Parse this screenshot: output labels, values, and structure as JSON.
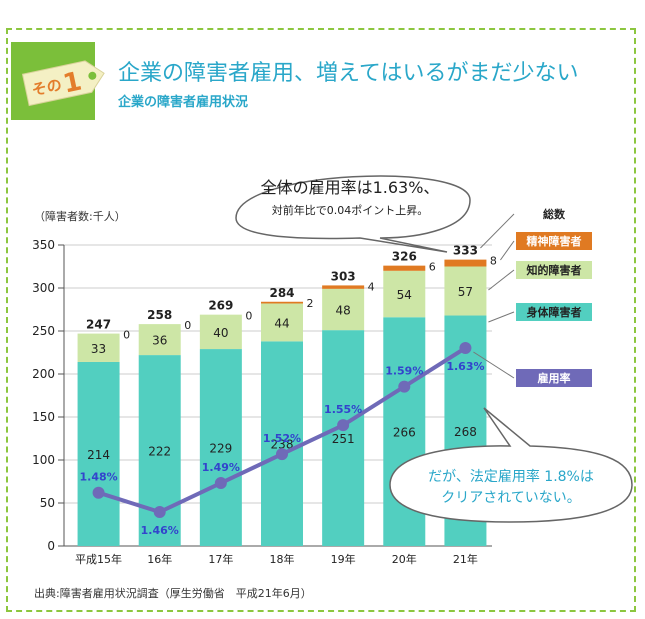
{
  "header": {
    "badge_text": "その",
    "badge_number": "1",
    "title": "企業の障害者雇用、増えてはいるがまだ少ない",
    "subtitle": "企業の障害者雇用状況"
  },
  "callouts": {
    "top_line1": "全体の雇用率は1.63%、",
    "top_line2": "対前年比で0.04ポイント上昇。",
    "bottom_line1": "だが、法定雇用率 1.8%は",
    "bottom_line2": "クリアされていない。"
  },
  "source": "出典:障害者雇用状況調査（厚生労働省　平成21年6月）",
  "colors": {
    "physical": "#52cfc0",
    "intellectual": "#cde6a6",
    "mental": "#e07a22",
    "rate_line": "#6f6ab8",
    "accent": "#2aa7c9",
    "frame": "#8cc63f"
  },
  "chart_data": {
    "type": "bar",
    "stacked": true,
    "ylabel": "（障害者数:千人）",
    "ylim": [
      0,
      350
    ],
    "yticks": [
      "0",
      "50",
      "100",
      "150",
      "200",
      "250",
      "300",
      "350"
    ],
    "categories": [
      "平成15年",
      "16年",
      "17年",
      "18年",
      "19年",
      "20年",
      "21年"
    ],
    "series": [
      {
        "name": "身体障害者",
        "values": [
          214,
          222,
          229,
          238,
          251,
          266,
          268
        ]
      },
      {
        "name": "知的障害者",
        "values": [
          33,
          36,
          40,
          44,
          48,
          54,
          57
        ]
      },
      {
        "name": "精神障害者",
        "values": [
          0,
          0,
          0,
          2,
          4,
          6,
          8
        ]
      }
    ],
    "totals_label": "総数",
    "totals": [
      "247",
      "258",
      "269",
      "284",
      "303",
      "326",
      "333"
    ],
    "mental_labels": [
      "0",
      "0",
      "0",
      "2",
      "4",
      "6",
      "8"
    ],
    "rate": {
      "name": "雇用率",
      "values": [
        1.48,
        1.46,
        1.49,
        1.52,
        1.55,
        1.59,
        1.63
      ],
      "labels": [
        "1.48%",
        "1.46%",
        "1.49%",
        "1.52%",
        "1.55%",
        "1.59%",
        "1.63%"
      ]
    }
  }
}
